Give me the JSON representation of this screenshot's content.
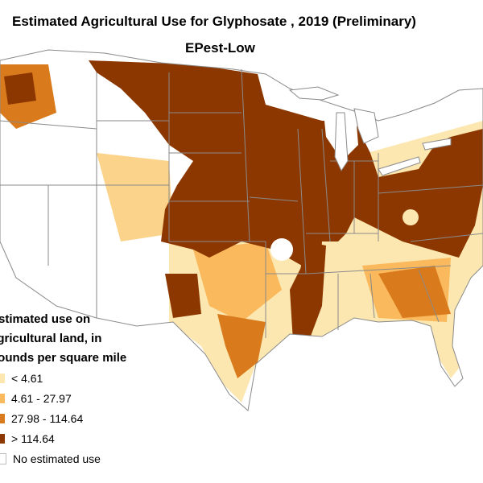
{
  "map": {
    "title": "Estimated Agricultural Use for Glyphosate , 2019 (Preliminary)",
    "subtitle": "EPest-Low"
  },
  "legend": {
    "title_lines": [
      "Estimated use on",
      "agricultural land, in",
      "pounds per square mile"
    ],
    "items": [
      {
        "label": "< 4.61",
        "color": "#fde7b1"
      },
      {
        "label": "4.61 - 27.97",
        "color": "#f9b95c"
      },
      {
        "label": "27.98 - 114.64",
        "color": "#d97a1c"
      },
      {
        "label": "> 114.64",
        "color": "#8c3700"
      },
      {
        "label": "No estimated use",
        "color": "#ffffff"
      }
    ]
  }
}
